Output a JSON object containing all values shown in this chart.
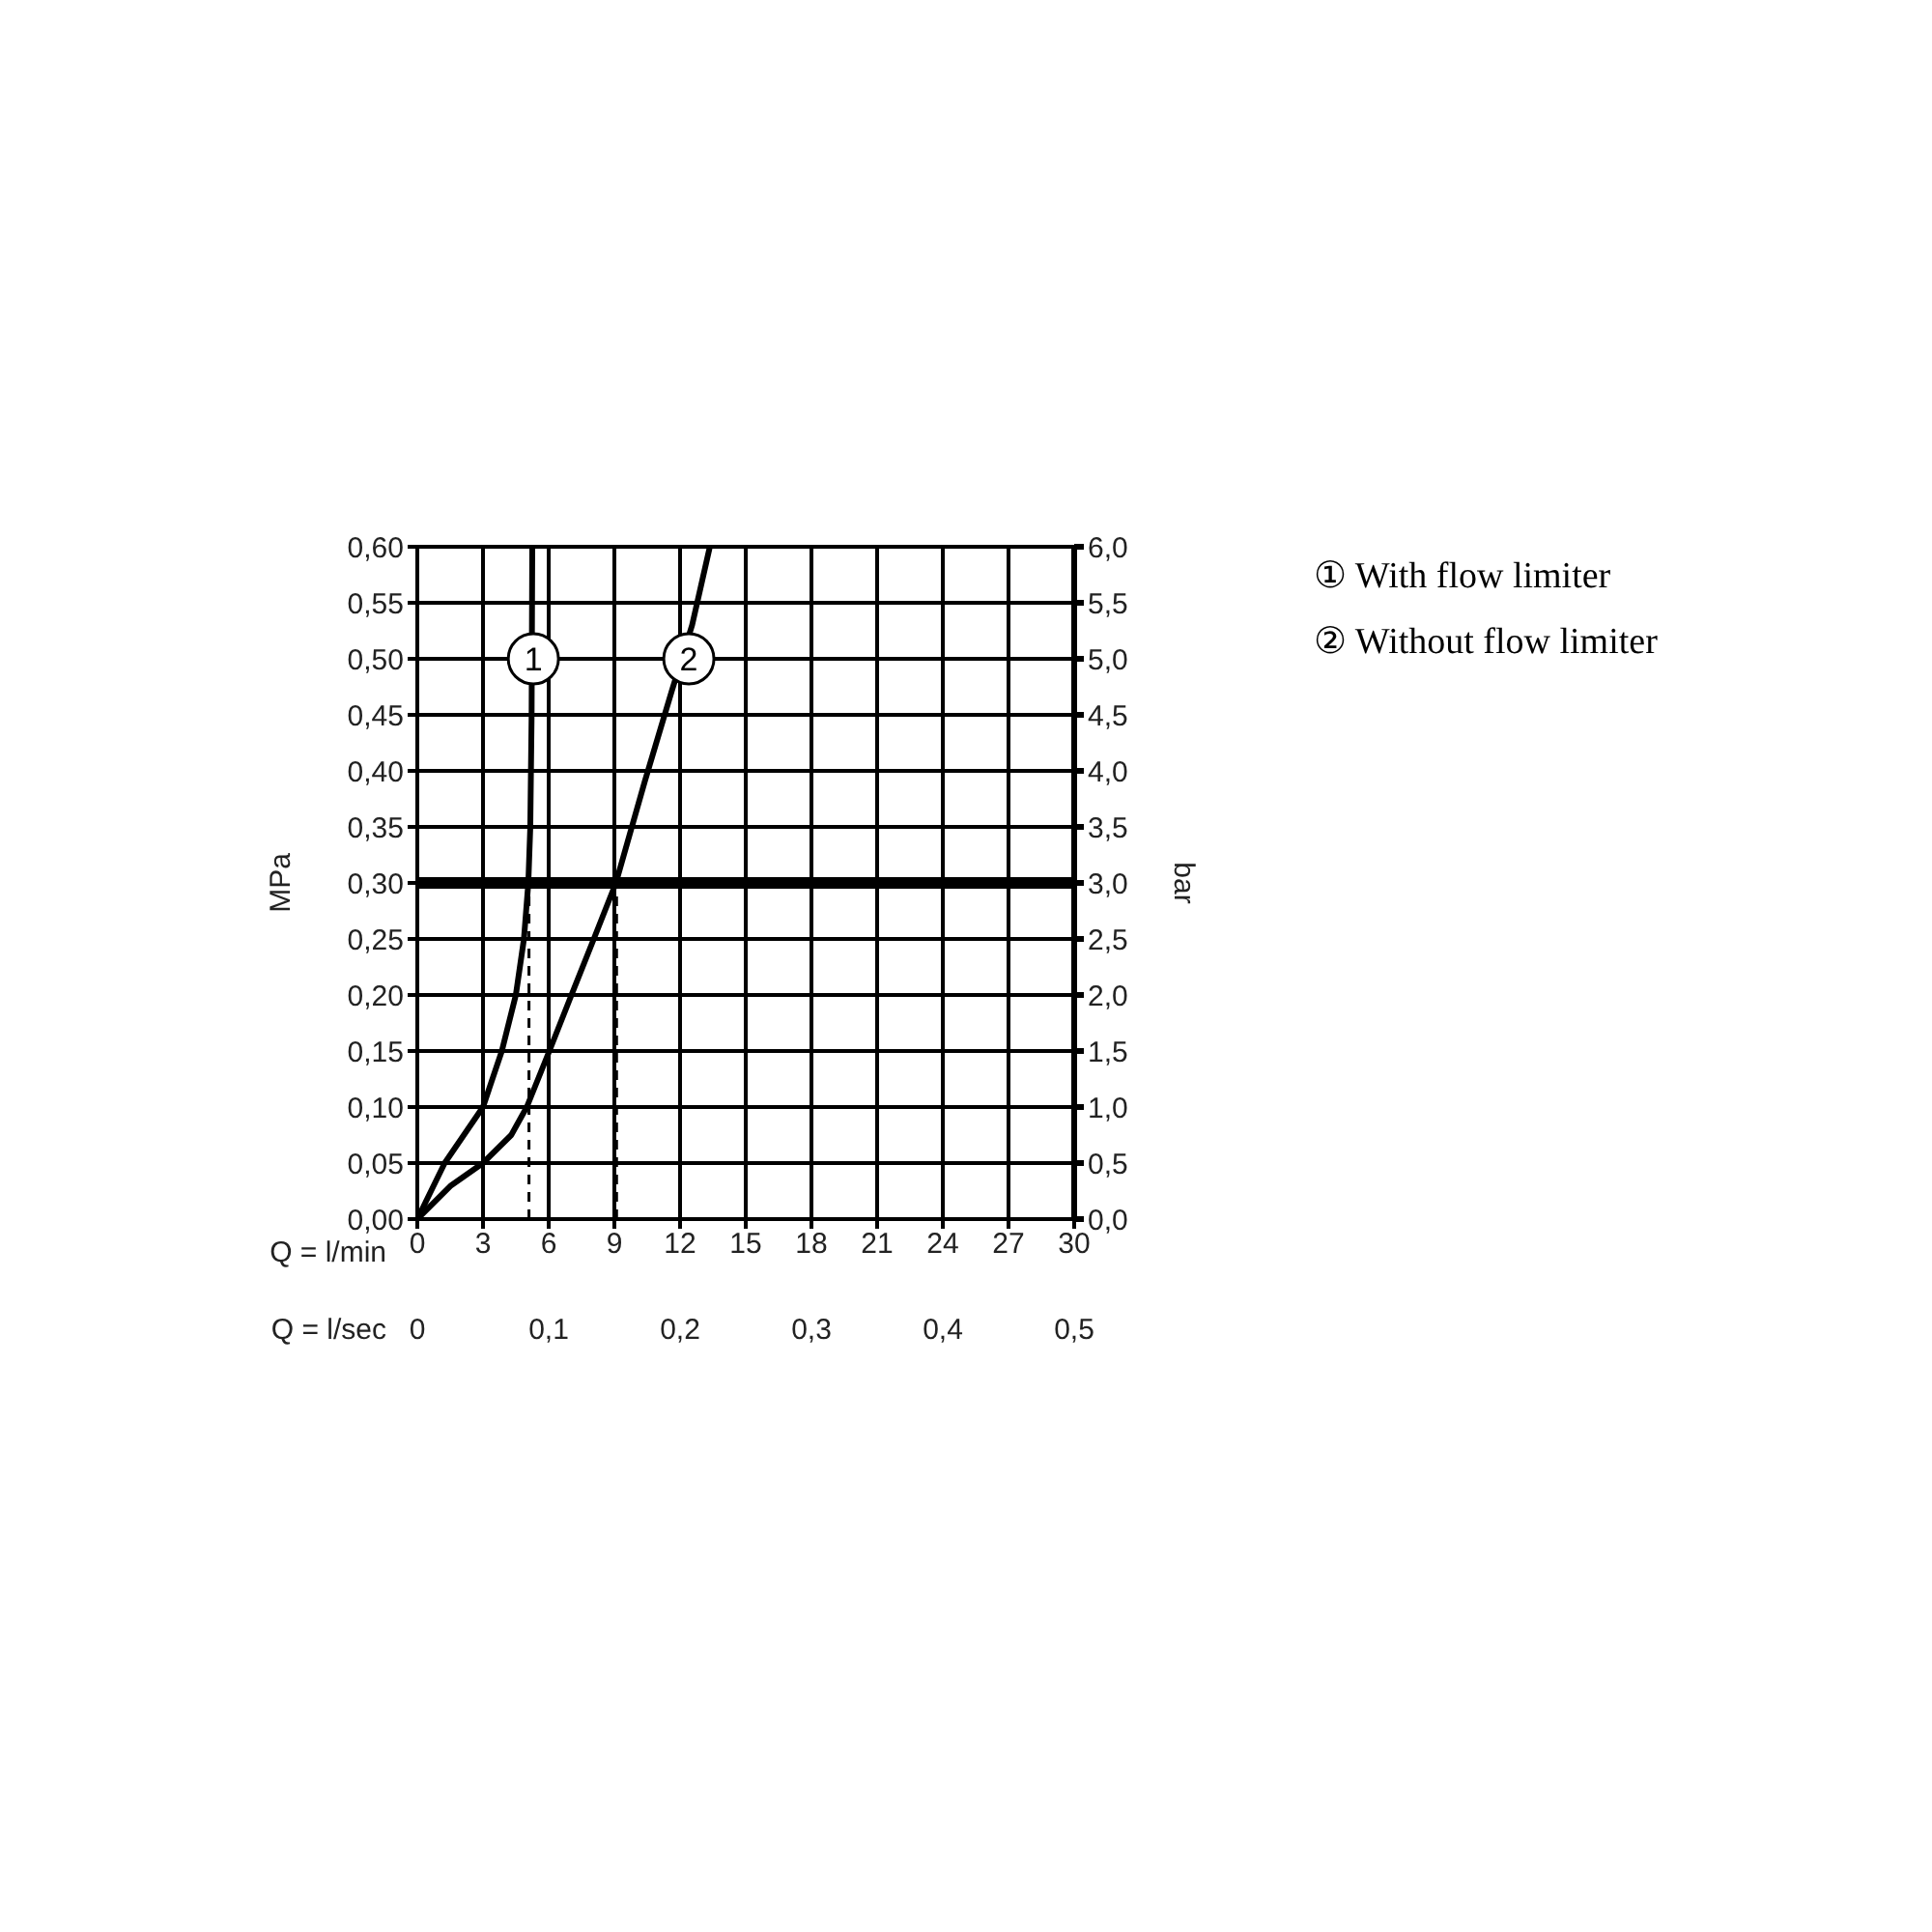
{
  "chart_data": {
    "type": "line",
    "xlabel": "Q = l/min",
    "x2label": "Q = l/sec",
    "ylabel": "MPa",
    "y2label": "bar",
    "xlim": [
      0,
      30
    ],
    "xticks": [
      0,
      3,
      6,
      9,
      12,
      15,
      18,
      21,
      24,
      27,
      30
    ],
    "x2lim": [
      0,
      0.5
    ],
    "x2ticks": [
      {
        "value": 0,
        "label": "0"
      },
      {
        "value": 0.1,
        "label": "0,1"
      },
      {
        "value": 0.2,
        "label": "0,2"
      },
      {
        "value": 0.3,
        "label": "0,3"
      },
      {
        "value": 0.4,
        "label": "0,4"
      },
      {
        "value": 0.5,
        "label": "0,5"
      }
    ],
    "ylim": [
      0,
      0.6
    ],
    "yticks": [
      {
        "value": 0,
        "label": "0,00"
      },
      {
        "value": 0.05,
        "label": "0,05"
      },
      {
        "value": 0.1,
        "label": "0,10"
      },
      {
        "value": 0.15,
        "label": "0,15"
      },
      {
        "value": 0.2,
        "label": "0,20"
      },
      {
        "value": 0.25,
        "label": "0,25"
      },
      {
        "value": 0.3,
        "label": "0,30"
      },
      {
        "value": 0.35,
        "label": "0,35"
      },
      {
        "value": 0.4,
        "label": "0,40"
      },
      {
        "value": 0.45,
        "label": "0,45"
      },
      {
        "value": 0.5,
        "label": "0,50"
      },
      {
        "value": 0.55,
        "label": "0,55"
      },
      {
        "value": 0.6,
        "label": "0,60"
      }
    ],
    "y2lim": [
      0,
      6
    ],
    "y2ticks": [
      {
        "value": 0,
        "label": "0,0"
      },
      {
        "value": 0.5,
        "label": "0,5"
      },
      {
        "value": 1,
        "label": "1,0"
      },
      {
        "value": 1.5,
        "label": "1,5"
      },
      {
        "value": 2,
        "label": "2,0"
      },
      {
        "value": 2.5,
        "label": "2,5"
      },
      {
        "value": 3,
        "label": "3,0"
      },
      {
        "value": 3.5,
        "label": "3,5"
      },
      {
        "value": 4,
        "label": "4,0"
      },
      {
        "value": 4.5,
        "label": "4,5"
      },
      {
        "value": 5,
        "label": "5,0"
      },
      {
        "value": 5.5,
        "label": "5,5"
      },
      {
        "value": 6,
        "label": "6,0"
      }
    ],
    "grid": true,
    "legend": "right",
    "marker": "none",
    "line_style": "solid",
    "series": [
      {
        "name": "① With flow limiter",
        "color": "#000000",
        "x": [
          0,
          1.25,
          3.0,
          3.86,
          4.5,
          4.87,
          5.07,
          5.16,
          5.22,
          5.25
        ],
        "values": [
          0,
          0.05,
          0.1,
          0.15,
          0.2,
          0.25,
          0.3,
          0.35,
          0.45,
          0.6
        ]
      },
      {
        "name": "② Without flow limiter",
        "color": "#000000",
        "x": [
          0,
          1.54,
          3.0,
          4.29,
          5.0,
          6.03,
          7.04,
          8.06,
          9.07,
          10.38,
          11.6,
          12.55,
          13.36
        ],
        "values": [
          0,
          0.03,
          0.05,
          0.075,
          0.1,
          0.15,
          0.2,
          0.25,
          0.3,
          0.39,
          0.47,
          0.53,
          0.6
        ]
      },
      {
        "color": "#000000",
        "line_style": "dashed",
        "x": [
          5.1,
          5.1
        ],
        "values": [
          0,
          0.3
        ]
      },
      {
        "color": "#000000",
        "line_style": "dashed",
        "x": [
          9.1,
          9.1
        ],
        "values": [
          0,
          0.3
        ]
      }
    ],
    "ref_lines": [
      {
        "axis": "y",
        "value": 0.3,
        "color": "#000000"
      }
    ],
    "annotations": [
      {
        "text": "1",
        "x": 5.3,
        "y": 0.5
      },
      {
        "text": "2",
        "x": 12.4,
        "y": 0.5
      }
    ]
  }
}
